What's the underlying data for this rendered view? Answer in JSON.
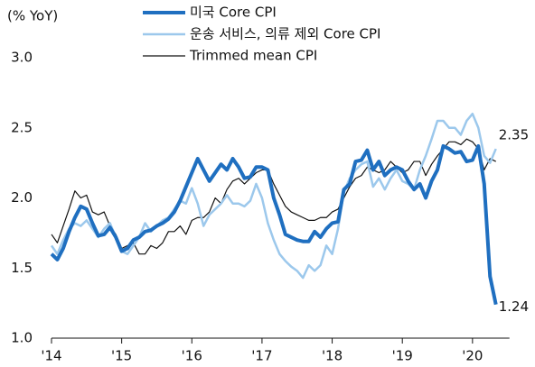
{
  "chart_data": {
    "type": "line",
    "y_axis_label": "(% YoY)",
    "categories": [
      "'14",
      null,
      null,
      null,
      null,
      null,
      null,
      null,
      null,
      null,
      null,
      null,
      "'15",
      null,
      null,
      null,
      null,
      null,
      null,
      null,
      null,
      null,
      null,
      null,
      "'16",
      null,
      null,
      null,
      null,
      null,
      null,
      null,
      null,
      null,
      null,
      null,
      "'17",
      null,
      null,
      null,
      null,
      null,
      null,
      null,
      null,
      null,
      null,
      null,
      "'18",
      null,
      null,
      null,
      null,
      null,
      null,
      null,
      null,
      null,
      null,
      null,
      "'19",
      null,
      null,
      null,
      null,
      null,
      null,
      null,
      null,
      null,
      null,
      null,
      "'20",
      null,
      null,
      null,
      null
    ],
    "ylim": [
      1.0,
      3.0
    ],
    "yticks": [
      {
        "value": 1.0,
        "label": "1.0"
      },
      {
        "value": 1.5,
        "label": "1.5"
      },
      {
        "value": 2.0,
        "label": "2.0"
      },
      {
        "value": 2.5,
        "label": "2.5"
      },
      {
        "value": 3.0,
        "label": "3.0"
      }
    ],
    "series": [
      {
        "name": "미국 Core CPI",
        "color": "#1f6fc0",
        "width": 4,
        "end_label": "1.24",
        "values": [
          1.6,
          1.56,
          1.64,
          1.76,
          1.86,
          1.94,
          1.92,
          1.82,
          1.73,
          1.74,
          1.79,
          1.72,
          1.62,
          1.64,
          1.7,
          1.72,
          1.76,
          1.77,
          1.8,
          1.82,
          1.85,
          1.9,
          1.98,
          2.08,
          2.18,
          2.28,
          2.2,
          2.12,
          2.18,
          2.24,
          2.2,
          2.28,
          2.22,
          2.14,
          2.15,
          2.22,
          2.22,
          2.2,
          2.0,
          1.88,
          1.74,
          1.72,
          1.7,
          1.69,
          1.69,
          1.76,
          1.72,
          1.78,
          1.82,
          1.83,
          2.06,
          2.1,
          2.26,
          2.27,
          2.34,
          2.2,
          2.26,
          2.16,
          2.2,
          2.22,
          2.2,
          2.12,
          2.06,
          2.1,
          2.0,
          2.12,
          2.2,
          2.37,
          2.35,
          2.32,
          2.33,
          2.26,
          2.27,
          2.37,
          2.1,
          1.44,
          1.24
        ]
      },
      {
        "name": "운송 서비스, 의류 제외 Core CPI",
        "color": "#9cc8ec",
        "width": 2.5,
        "end_label": "2.35",
        "values": [
          1.66,
          1.6,
          1.7,
          1.78,
          1.82,
          1.8,
          1.84,
          1.78,
          1.72,
          1.78,
          1.82,
          1.72,
          1.62,
          1.6,
          1.66,
          1.72,
          1.82,
          1.76,
          1.8,
          1.84,
          1.86,
          1.92,
          1.98,
          1.96,
          2.07,
          1.96,
          1.8,
          1.88,
          1.92,
          1.96,
          2.02,
          1.96,
          1.96,
          1.94,
          1.98,
          2.1,
          2.0,
          1.82,
          1.7,
          1.6,
          1.55,
          1.51,
          1.48,
          1.43,
          1.52,
          1.48,
          1.52,
          1.66,
          1.6,
          1.78,
          2.04,
          2.14,
          2.2,
          2.24,
          2.26,
          2.08,
          2.14,
          2.06,
          2.14,
          2.2,
          2.12,
          2.1,
          2.06,
          2.2,
          2.3,
          2.42,
          2.55,
          2.55,
          2.5,
          2.5,
          2.45,
          2.55,
          2.6,
          2.5,
          2.3,
          2.25,
          2.35
        ]
      },
      {
        "name": "Trimmed mean CPI",
        "color": "#111111",
        "width": 1.2,
        "values": [
          1.74,
          1.68,
          1.8,
          1.92,
          2.05,
          2.0,
          2.02,
          1.9,
          1.88,
          1.9,
          1.8,
          1.74,
          1.64,
          1.66,
          1.68,
          1.6,
          1.6,
          1.66,
          1.64,
          1.68,
          1.76,
          1.76,
          1.8,
          1.74,
          1.84,
          1.86,
          1.86,
          1.9,
          2.0,
          1.96,
          2.06,
          2.12,
          2.14,
          2.1,
          2.14,
          2.18,
          2.2,
          2.2,
          2.1,
          2.02,
          1.94,
          1.9,
          1.88,
          1.86,
          1.84,
          1.84,
          1.86,
          1.86,
          1.9,
          1.92,
          2.0,
          2.08,
          2.14,
          2.16,
          2.22,
          2.2,
          2.18,
          2.2,
          2.26,
          2.22,
          2.18,
          2.2,
          2.26,
          2.26,
          2.16,
          2.24,
          2.3,
          2.35,
          2.4,
          2.4,
          2.38,
          2.42,
          2.4,
          2.35,
          2.2,
          2.28,
          2.26
        ]
      }
    ]
  }
}
